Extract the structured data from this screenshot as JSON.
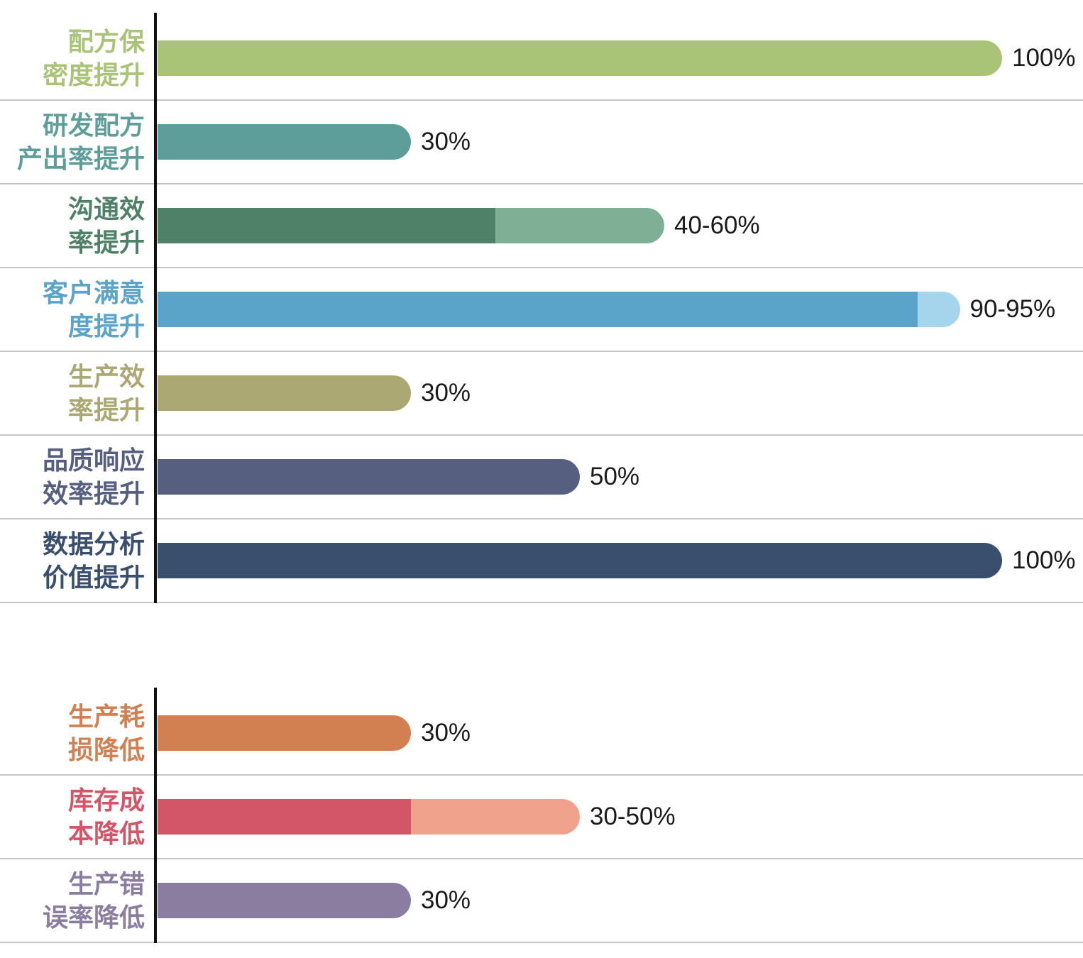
{
  "page": {
    "background": "#ffffff",
    "axis_color": "#111111",
    "separator_color": "#c6c6c6",
    "value_text_color": "#1a1a1a"
  },
  "charts": [
    {
      "name": "improvement-chart",
      "rows": [
        {
          "label_lines": [
            "配方保",
            "密度提升"
          ],
          "label_color": "#a9c377",
          "value_label": "100%",
          "segments": [
            {
              "color": "#a9c377",
              "pct": 100
            }
          ]
        },
        {
          "label_lines": [
            "研发配方",
            "产出率提升"
          ],
          "label_color": "#5d9e9b",
          "value_label": "30%",
          "segments": [
            {
              "color": "#5d9e9b",
              "pct": 30
            }
          ]
        },
        {
          "label_lines": [
            "沟通效",
            "率提升"
          ],
          "label_color": "#4e8168",
          "value_label": "40-60%",
          "segments": [
            {
              "color": "#4e8168",
              "pct": 40
            },
            {
              "color": "#7fb096",
              "pct": 60
            }
          ]
        },
        {
          "label_lines": [
            "客户满意",
            "度提升"
          ],
          "label_color": "#5ba4c9",
          "value_label": "90-95%",
          "segments": [
            {
              "color": "#5ba4c9",
              "pct": 90
            },
            {
              "color": "#a5d5ec",
              "pct": 95
            }
          ]
        },
        {
          "label_lines": [
            "生产效",
            "率提升"
          ],
          "label_color": "#aba873",
          "value_label": "30%",
          "segments": [
            {
              "color": "#aba873",
              "pct": 30
            }
          ]
        },
        {
          "label_lines": [
            "品质响应",
            "效率提升"
          ],
          "label_color": "#575f80",
          "value_label": "50%",
          "segments": [
            {
              "color": "#575f80",
              "pct": 50
            }
          ]
        },
        {
          "label_lines": [
            "数据分析",
            "价值提升"
          ],
          "label_color": "#3a4f6e",
          "value_label": "100%",
          "segments": [
            {
              "color": "#3a4f6e",
              "pct": 100
            }
          ]
        }
      ]
    },
    {
      "name": "reduction-chart",
      "rows": [
        {
          "label_lines": [
            "生产耗",
            "损降低"
          ],
          "label_color": "#d28052",
          "value_label": "30%",
          "segments": [
            {
              "color": "#d28052",
              "pct": 30
            }
          ]
        },
        {
          "label_lines": [
            "库存成",
            "本降低"
          ],
          "label_color": "#d25667",
          "value_label": "30-50%",
          "segments": [
            {
              "color": "#d25667",
              "pct": 30
            },
            {
              "color": "#f0a28c",
              "pct": 50
            }
          ]
        },
        {
          "label_lines": [
            "生产错",
            "误率降低"
          ],
          "label_color": "#8b7da0",
          "value_label": "30%",
          "segments": [
            {
              "color": "#8b7da0",
              "pct": 30
            }
          ]
        }
      ]
    }
  ],
  "chart_data": [
    {
      "type": "bar",
      "orientation": "horizontal",
      "title": "",
      "categories": [
        "配方保密度提升",
        "研发配方产出率提升",
        "沟通效率提升",
        "客户满意度提升",
        "生产效率提升",
        "品质响应效率提升",
        "数据分析价值提升"
      ],
      "series": [
        {
          "name": "min",
          "values": [
            100,
            30,
            40,
            90,
            30,
            50,
            100
          ]
        },
        {
          "name": "max",
          "values": [
            100,
            30,
            60,
            95,
            30,
            50,
            100
          ]
        }
      ],
      "value_labels": [
        "100%",
        "30%",
        "40-60%",
        "90-95%",
        "30%",
        "50%",
        "100%"
      ],
      "bar_colors_solid": [
        "#a9c377",
        "#5d9e9b",
        "#4e8168",
        "#5ba4c9",
        "#aba873",
        "#575f80",
        "#3a4f6e"
      ],
      "bar_colors_range_tip": [
        null,
        null,
        "#7fb096",
        "#a5d5ec",
        null,
        null,
        null
      ],
      "xlim": [
        0,
        100
      ],
      "unit": "%",
      "grid": "horizontal row separators only",
      "legend": "none"
    },
    {
      "type": "bar",
      "orientation": "horizontal",
      "title": "",
      "categories": [
        "生产耗损降低",
        "库存成本降低",
        "生产错误率降低"
      ],
      "series": [
        {
          "name": "min",
          "values": [
            30,
            30,
            30
          ]
        },
        {
          "name": "max",
          "values": [
            30,
            50,
            30
          ]
        }
      ],
      "value_labels": [
        "30%",
        "30-50%",
        "30%"
      ],
      "bar_colors_solid": [
        "#d28052",
        "#d25667",
        "#8b7da0"
      ],
      "bar_colors_range_tip": [
        null,
        "#f0a28c",
        null
      ],
      "xlim": [
        0,
        100
      ],
      "unit": "%",
      "grid": "horizontal row separators only",
      "legend": "none"
    }
  ]
}
